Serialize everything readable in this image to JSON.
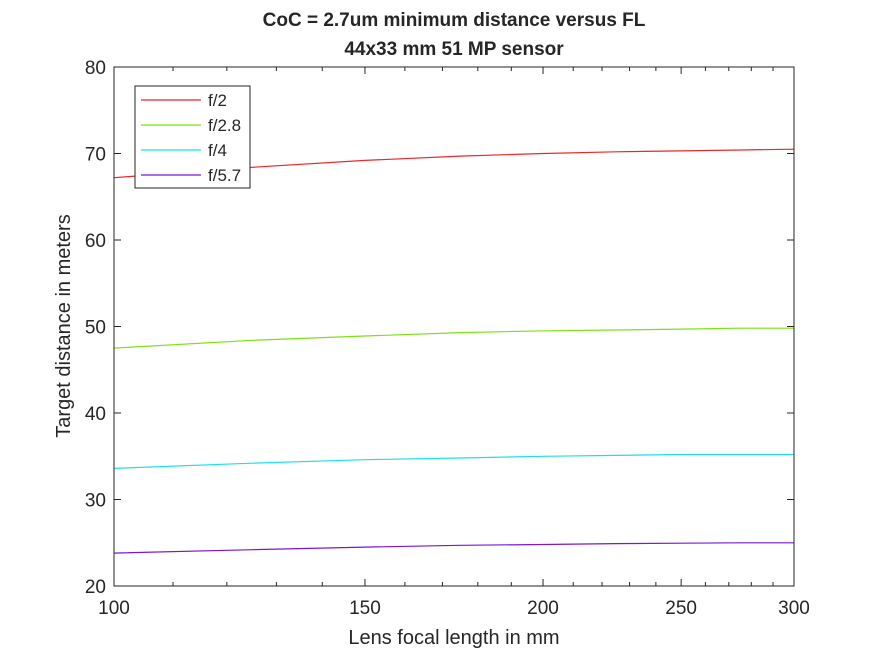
{
  "chart_data": {
    "type": "line",
    "title": [
      "CoC = 2.7um minimum distance versus FL",
      "44x33 mm 51 MP sensor"
    ],
    "xlabel": "Lens focal length in mm",
    "ylabel": "Target distance in meters",
    "xscale": "log",
    "xlim": [
      100,
      300
    ],
    "ylim": [
      20,
      80
    ],
    "xticks": [
      100,
      150,
      200,
      250,
      300
    ],
    "xtick_labels": [
      "100",
      "150",
      "200",
      "250",
      "300"
    ],
    "yticks": [
      20,
      30,
      40,
      50,
      60,
      70,
      80
    ],
    "ytick_labels": [
      "20",
      "30",
      "40",
      "50",
      "60",
      "70",
      "80"
    ],
    "grid": false,
    "legend_position": "top-left",
    "x": [
      100,
      125,
      150,
      175,
      200,
      225,
      250,
      275,
      300
    ],
    "series": [
      {
        "name": "f/2",
        "color": "#e8282b",
        "values": [
          67.2,
          68.4,
          69.2,
          69.7,
          70.0,
          70.2,
          70.3,
          70.4,
          70.5
        ]
      },
      {
        "name": "f/2.8",
        "color": "#7fe014",
        "values": [
          47.5,
          48.4,
          48.9,
          49.3,
          49.5,
          49.6,
          49.7,
          49.8,
          49.8
        ]
      },
      {
        "name": "f/4",
        "color": "#1fe0e6",
        "values": [
          33.6,
          34.2,
          34.6,
          34.8,
          35.0,
          35.1,
          35.2,
          35.2,
          35.2
        ]
      },
      {
        "name": "f/5.7",
        "color": "#7a16d4",
        "values": [
          23.8,
          24.2,
          24.5,
          24.7,
          24.8,
          24.9,
          24.95,
          25.0,
          25.0
        ]
      }
    ]
  }
}
